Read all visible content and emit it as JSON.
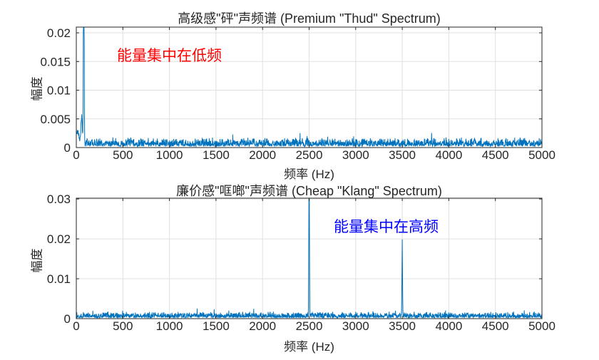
{
  "colors": {
    "background": "#ffffff",
    "line": "#0072BD",
    "axis": "#262626",
    "grid": "#e0e0e0",
    "annotation_low_freq": "#ff0000",
    "annotation_high_freq": "#0000ff"
  },
  "chart_data": [
    {
      "type": "line",
      "title": "高级感\"砰\"声频谱 (Premium \"Thud\" Spectrum)",
      "xlabel": "频率 (Hz)",
      "ylabel": "幅度",
      "xlim": [
        0,
        5000
      ],
      "ylim": [
        0,
        0.021
      ],
      "x_ticks": [
        0,
        500,
        1000,
        1500,
        2000,
        2500,
        3000,
        3500,
        4000,
        4500,
        5000
      ],
      "y_ticks": [
        0,
        0.005,
        0.01,
        0.015,
        0.02
      ],
      "y_tick_labels": [
        "0",
        "0.005",
        "0.01",
        "0.015",
        "0.02"
      ],
      "grid": true,
      "legend": null,
      "annotation": {
        "text": "能量集中在低频",
        "color": "#ff0000",
        "x": 450,
        "y": 0.0165
      },
      "series": [
        {
          "name": "premium-thud-spectrum",
          "color": "#0072BD",
          "seed": 7,
          "noise": {
            "base": 0.0002,
            "var": 0.0016,
            "spike_prob": 0.03,
            "spike_gain": 1.5
          },
          "peaks": [
            {
              "freq": 12,
              "amp": 0.0022,
              "width": 22
            },
            {
              "freq": 57,
              "amp": 0.0042,
              "width": 11
            },
            {
              "freq": 80,
              "amp": 0.05,
              "width": 5,
              "clipped_at": 0.021
            }
          ]
        }
      ]
    },
    {
      "type": "line",
      "title": "廉价感\"哐啷\"声频谱 (Cheap \"Klang\" Spectrum)",
      "xlabel": "频率 (Hz)",
      "ylabel": "幅度",
      "xlim": [
        0,
        5000
      ],
      "ylim": [
        0,
        0.0302
      ],
      "x_ticks": [
        0,
        500,
        1000,
        1500,
        2000,
        2500,
        3000,
        3500,
        4000,
        4500,
        5000
      ],
      "y_ticks": [
        0,
        0.01,
        0.02,
        0.03
      ],
      "y_tick_labels": [
        "0",
        "0.01",
        "0.02",
        "0.03"
      ],
      "grid": true,
      "legend": null,
      "annotation": {
        "text": "能量集中在高频",
        "color": "#0000ff",
        "x": 2780,
        "y": 0.0232
      },
      "series": [
        {
          "name": "cheap-klang-spectrum",
          "color": "#0072BD",
          "seed": 99,
          "noise": {
            "base": 0.0002,
            "var": 0.0016,
            "spike_prob": 0.03,
            "spike_gain": 1.5
          },
          "peaks": [
            {
              "freq": 2500,
              "amp": 0.05,
              "width": 4,
              "clipped_at": 0.0302
            },
            {
              "freq": 3500,
              "amp": 0.0192,
              "width": 4
            }
          ]
        }
      ]
    }
  ]
}
